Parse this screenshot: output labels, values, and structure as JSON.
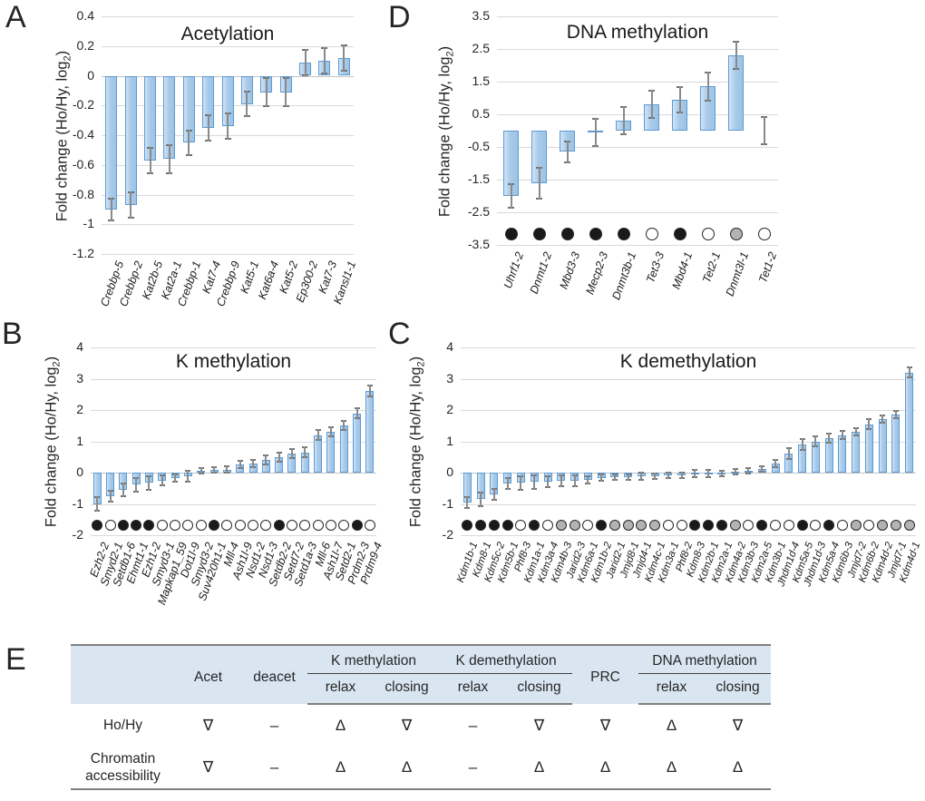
{
  "labels": {
    "y_title_main": "Fold change (Ho/Hy, log",
    "y_title_sub": "2",
    "y_title_close": ")"
  },
  "colors": {
    "bar_fill": "#a9cbea",
    "bar_border": "#5b9bd5",
    "error_bar": "#737373",
    "gridline": "#d9d9d9",
    "table_header_bg": "#d9e6f2",
    "dot_black": "#1a1a1a",
    "dot_white": "#ffffff",
    "dot_gray": "#b3b3b3"
  },
  "chart_data": [
    {
      "type": "bar",
      "panel": "A",
      "title": "Acetylation",
      "ylabel": "Fold change (Ho/Hy, log2)",
      "ylim": [
        -1.2,
        0.4
      ],
      "yticks": [
        "0.4",
        "0.2",
        "0",
        "-0.2",
        "-0.4",
        "-0.6",
        "-0.8",
        "-1",
        "-1.2"
      ],
      "grid": true,
      "categories": [
        "Crebbp-5",
        "Crebbp-2",
        "Kat2b-5",
        "Kat2a-1",
        "Crebbp-1",
        "Kat7-4",
        "Crebbp-9",
        "Kat5-1",
        "Kat6a-4",
        "Kat5-2",
        "Ep300-2",
        "Kat7-3",
        "Kansl1-1"
      ],
      "values": [
        -0.9,
        -0.87,
        -0.57,
        -0.56,
        -0.45,
        -0.35,
        -0.34,
        -0.19,
        -0.11,
        -0.11,
        0.09,
        0.1,
        0.12
      ],
      "errors": [
        0.08,
        0.09,
        0.09,
        0.1,
        0.09,
        0.09,
        0.09,
        0.09,
        0.1,
        0.1,
        0.09,
        0.09,
        0.09
      ],
      "circles": null
    },
    {
      "type": "bar",
      "panel": "B",
      "title": "K methylation",
      "ylabel": "Fold change (Ho/Hy, log2)",
      "ylim": [
        -2,
        4
      ],
      "yticks": [
        "4",
        "3",
        "2",
        "1",
        "0",
        "-1",
        "-2"
      ],
      "grid": true,
      "categories": [
        "Ezh2-2",
        "Smyd2-1",
        "Setdb1-6",
        "Ehmt1-1",
        "Ezh1-2",
        "Smyd3-1",
        "Mapkap1_59",
        "Dot1l-9",
        "Smyd3-2",
        "Suv420h1-1",
        "Mll-4",
        "Ash1l-9",
        "Nsd1-2",
        "Nsd1-3",
        "Setdb2-2",
        "Setd7-2",
        "Setd1a-3",
        "Mll-6",
        "Ash1l-7",
        "Setd2-1",
        "Prdm2-3",
        "Prdm9-4"
      ],
      "values": [
        -1.0,
        -0.75,
        -0.55,
        -0.38,
        -0.33,
        -0.25,
        -0.18,
        -0.12,
        0.05,
        0.08,
        0.1,
        0.25,
        0.3,
        0.4,
        0.5,
        0.6,
        0.65,
        1.2,
        1.3,
        1.5,
        1.9,
        2.6
      ],
      "errors": [
        0.25,
        0.2,
        0.22,
        0.25,
        0.25,
        0.18,
        0.15,
        0.2,
        0.12,
        0.12,
        0.12,
        0.15,
        0.15,
        0.18,
        0.18,
        0.18,
        0.18,
        0.18,
        0.18,
        0.18,
        0.2,
        0.2
      ],
      "circles": [
        "black",
        "white",
        "black",
        "black",
        "black",
        "white",
        "white",
        "white",
        "white",
        "black",
        "white",
        "white",
        "white",
        "white",
        "black",
        "white",
        "white",
        "white",
        "white",
        "white",
        "black",
        "white"
      ]
    },
    {
      "type": "bar",
      "panel": "C",
      "title": "K demethylation",
      "ylabel": "Fold change (Ho/Hy, log2)",
      "ylim": [
        -2,
        4
      ],
      "yticks": [
        "4",
        "3",
        "2",
        "1",
        "0",
        "-1",
        "-2"
      ],
      "grid": true,
      "categories": [
        "Kdm1b-1",
        "Kdm8-1",
        "Kdm5c-2",
        "Kdm5b-1",
        "Phf8-3",
        "Kdm1a-1",
        "Kdm3a-4",
        "Kdm4b-3",
        "Jarid2-3",
        "Kdm6a-1",
        "Kdm1b-2",
        "Jarid2-1",
        "Jmjd8-1",
        "Jmjd4-1",
        "Kdm4c-1",
        "Kdm3a-1",
        "Phf8-2",
        "Kdm8-3",
        "Kdm2b-1",
        "Kdm2a-1",
        "Kdm4a-2",
        "Kdm3b-3",
        "Kdm2a-5",
        "Kdm3b-1",
        "Jhdm1d-4",
        "Kdm5a-5",
        "Jhdm1d-3",
        "Kdm5a-4",
        "Kdm6b-3",
        "Jmjd7-2",
        "Kdm6b-2",
        "Kdm4d-2",
        "Jmjd7-1",
        "Kdm4d-1"
      ],
      "values": [
        -0.95,
        -0.85,
        -0.7,
        -0.35,
        -0.33,
        -0.3,
        -0.28,
        -0.27,
        -0.26,
        -0.24,
        -0.16,
        -0.15,
        -0.14,
        -0.12,
        -0.11,
        -0.09,
        -0.08,
        -0.04,
        -0.03,
        -0.02,
        0.02,
        0.06,
        0.12,
        0.3,
        0.6,
        0.9,
        1.0,
        1.1,
        1.2,
        1.3,
        1.55,
        1.72,
        1.85,
        3.2
      ],
      "errors": [
        0.2,
        0.25,
        0.2,
        0.2,
        0.25,
        0.25,
        0.2,
        0.2,
        0.2,
        0.15,
        0.12,
        0.12,
        0.12,
        0.15,
        0.12,
        0.12,
        0.12,
        0.15,
        0.15,
        0.12,
        0.12,
        0.12,
        0.12,
        0.15,
        0.2,
        0.2,
        0.2,
        0.18,
        0.15,
        0.15,
        0.18,
        0.15,
        0.15,
        0.18
      ],
      "circles": [
        "black",
        "black",
        "black",
        "black",
        "white",
        "black",
        "white",
        "gray",
        "gray",
        "white",
        "black",
        "gray",
        "gray",
        "gray",
        "gray",
        "white",
        "white",
        "black",
        "black",
        "black",
        "gray",
        "white",
        "black",
        "white",
        "white",
        "black",
        "white",
        "black",
        "white",
        "gray",
        "white",
        "gray",
        "gray",
        "gray"
      ]
    },
    {
      "type": "bar",
      "panel": "D",
      "title": "DNA methylation",
      "ylabel": "Fold change (Ho/Hy, log2)",
      "ylim": [
        -3.5,
        3.5
      ],
      "yticks": [
        "3.5",
        "2.5",
        "1.5",
        "0.5",
        "-0.5",
        "-1.5",
        "-2.5",
        "-3.5"
      ],
      "grid": true,
      "categories": [
        "Uhrf1-2",
        "Dnmt1-2",
        "Mbd3-3",
        "Mecp2-3",
        "Dnmt3b-1",
        "Tet3-3",
        "Mbd4-1",
        "Tet2-1",
        "Dnmt3l-1",
        "Tet1-2"
      ],
      "values": [
        -2.0,
        -1.6,
        -0.65,
        -0.05,
        0.3,
        0.8,
        0.95,
        1.35,
        2.3,
        0.0
      ],
      "errors": [
        0.4,
        0.5,
        0.35,
        0.45,
        0.45,
        0.45,
        0.42,
        0.45,
        0.45,
        0.45
      ],
      "circles": [
        "black",
        "black",
        "black",
        "black",
        "black",
        "white",
        "black",
        "white",
        "gray",
        "white"
      ]
    }
  ],
  "table": {
    "headers": {
      "acet": "Acet",
      "deacet": "deacet",
      "k_methylation": "K methylation",
      "k_demethylation": "K demethylation",
      "prc": "PRC",
      "dna_methylation": "DNA methylation"
    },
    "subheaders": [
      "relax",
      "closing",
      "relax",
      "closing",
      "relax",
      "closing"
    ],
    "rows": [
      {
        "label": "Ho/Hy",
        "cells": [
          "∇",
          "–",
          "Δ",
          "∇",
          "–",
          "∇",
          "∇",
          "Δ",
          "∇"
        ]
      },
      {
        "label": "Chromatin accessibility",
        "cells": [
          "∇",
          "–",
          "Δ",
          "Δ",
          "–",
          "Δ",
          "Δ",
          "Δ",
          "Δ"
        ]
      }
    ]
  }
}
